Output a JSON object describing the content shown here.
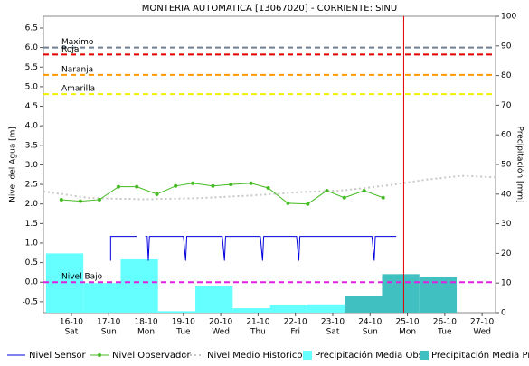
{
  "chart_data": {
    "type": "line",
    "title": "MONTERIA  AUTOMATICA [13067020] - CORRIENTE: SINU",
    "y_label": "Nivel del Agua [m]",
    "y2_label": "Precipitación [mm]",
    "xlim": [
      15.25,
      27.36
    ],
    "xticks": [
      {
        "value": 16,
        "label": "16-10"
      },
      {
        "value": 17,
        "label": "17-10"
      },
      {
        "value": 18,
        "label": "18-10"
      },
      {
        "value": 19,
        "label": "19-10"
      },
      {
        "value": 20,
        "label": "20-10"
      },
      {
        "value": 21,
        "label": "21-10"
      },
      {
        "value": 22,
        "label": "22-10"
      },
      {
        "value": 23,
        "label": "23-10"
      },
      {
        "value": 24,
        "label": "24-10"
      },
      {
        "value": 25,
        "label": "25-10"
      },
      {
        "value": 26,
        "label": "26-10"
      },
      {
        "value": 27,
        "label": "27-10"
      }
    ],
    "xtick_days": [
      "Sat",
      "Sun",
      "Mon",
      "Tue",
      "Wed",
      "Thu",
      "Fri",
      "Sat",
      "Sun",
      "Mon",
      "Tue",
      "Wed"
    ],
    "ylim": [
      -0.78,
      6.8
    ],
    "yticks": [
      -0.5,
      {
        "value": 0,
        "label": "0.0"
      },
      0.5,
      {
        "value": 1,
        "label": "1.0"
      },
      1.5,
      {
        "value": 2,
        "label": "2.0"
      },
      2.5,
      {
        "value": 3,
        "label": "3.0"
      },
      3.5,
      {
        "value": 4,
        "label": "4.0"
      },
      4.5,
      {
        "value": 5,
        "label": "5.0"
      },
      5.5,
      {
        "value": 6,
        "label": "6.0"
      },
      6.5
    ],
    "y2lim": [
      0,
      100
    ],
    "y2ticks": [
      0,
      10,
      20,
      30,
      40,
      50,
      60,
      70,
      80,
      90,
      100
    ],
    "thresholds": [
      {
        "label": "Maximo",
        "value": 6.0,
        "color": "#708090"
      },
      {
        "label": "Roja",
        "value": 5.82,
        "color": "#e00000"
      },
      {
        "label": "Naranja",
        "value": 5.3,
        "color": "#ff9900"
      },
      {
        "label": "Amarilla",
        "value": 4.81,
        "color": "#f0f000"
      },
      {
        "label": "Nivel Bajo",
        "value": 0.0,
        "color": "#e020e0"
      }
    ],
    "now_x": 24.9,
    "now_color": "#e00000",
    "series": [
      {
        "name": "Nivel Sensor",
        "type": "line",
        "color": "#0000dd",
        "x": [
          17.05,
          17.05,
          17.75,
          null,
          17.98,
          18.03,
          18.06,
          18.09,
          19.0,
          19.06,
          19.09,
          20.04,
          20.1,
          20.13,
          21.06,
          21.12,
          21.15,
          22.03,
          22.09,
          22.12,
          24.05,
          24.11,
          24.14,
          24.7
        ],
        "values": [
          0.55,
          1.17,
          1.17,
          null,
          1.17,
          1.17,
          0.55,
          1.17,
          1.17,
          0.55,
          1.17,
          1.17,
          0.55,
          1.17,
          1.17,
          0.55,
          1.17,
          1.17,
          0.55,
          1.17,
          1.17,
          0.55,
          1.17,
          1.17
        ]
      },
      {
        "name": "Nivel Observador",
        "type": "line-markers",
        "color": "#44bb22",
        "x": [
          15.73,
          16.24,
          16.75,
          17.26,
          17.75,
          18.29,
          18.79,
          19.25,
          19.79,
          20.27,
          20.81,
          21.27,
          21.8,
          22.33,
          22.84,
          23.31,
          23.84,
          24.35
        ],
        "values": [
          2.11,
          2.07,
          2.11,
          2.44,
          2.44,
          2.25,
          2.46,
          2.53,
          2.46,
          2.5,
          2.53,
          2.41,
          2.02,
          2.0,
          2.34,
          2.16,
          2.34,
          2.16
        ]
      },
      {
        "name": "Nivel Medio Historico",
        "type": "dotted",
        "color": "#c8c8c8",
        "x": [
          15.25,
          16.51,
          17.97,
          19.42,
          20.88,
          22.09,
          23.31,
          24.52,
          25.49,
          26.46,
          27.36
        ],
        "values": [
          2.32,
          2.15,
          2.12,
          2.15,
          2.22,
          2.3,
          2.35,
          2.48,
          2.62,
          2.72,
          2.68
        ]
      },
      {
        "name": "Precipitación Media Obs",
        "type": "bar",
        "axis": "y2",
        "color": "#66ffff",
        "bins": [
          15.32,
          16.32,
          17.32,
          18.32,
          19.32,
          20.32,
          21.32,
          22.32,
          23.32,
          24.32
        ],
        "values": [
          20,
          10,
          18,
          0.5,
          9,
          1.5,
          2.5,
          2.8,
          2.8
        ]
      },
      {
        "name": "Precipitación Media Pro",
        "type": "bar",
        "axis": "y2",
        "color": "#40c0c0",
        "bins": [
          23.32,
          24.32,
          25.32,
          26.32
        ],
        "values": [
          5.5,
          13,
          12
        ]
      }
    ]
  }
}
